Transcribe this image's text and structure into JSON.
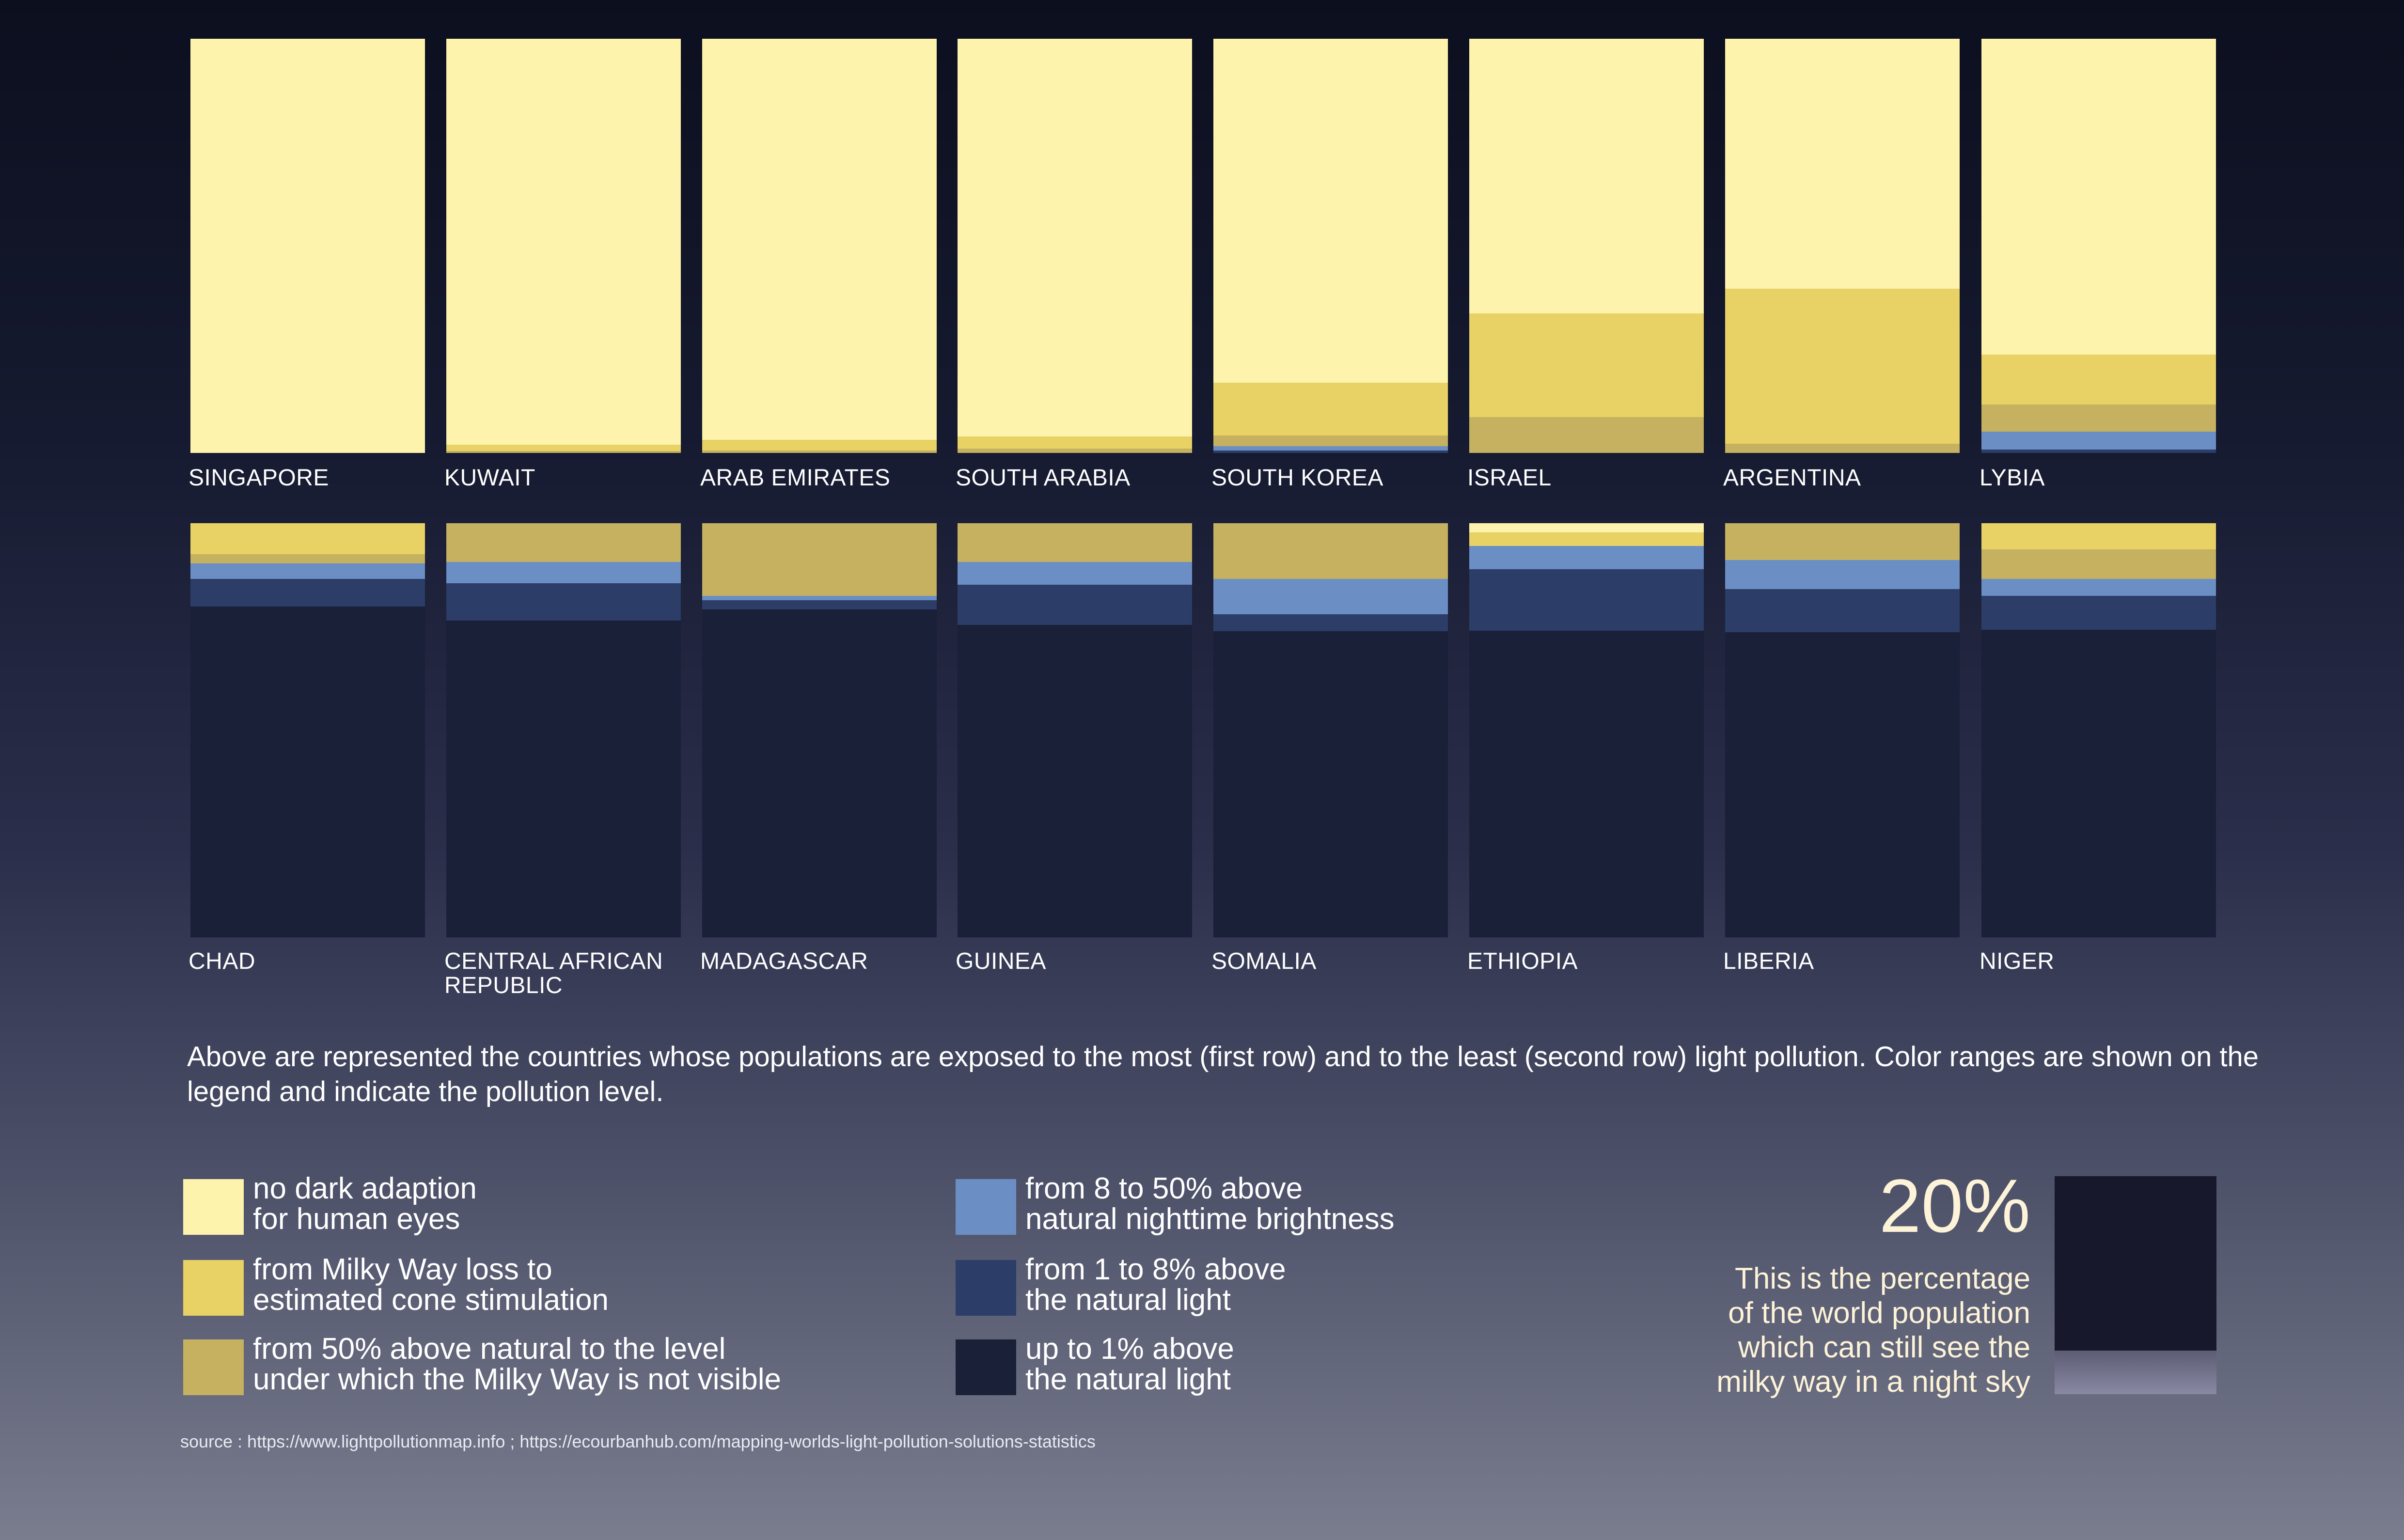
{
  "chart_data": {
    "type": "bar",
    "stacked": true,
    "percent_stacked": true,
    "levels": [
      {
        "key": "no_dark_adaption",
        "label": "no dark adaption\nfor human eyes",
        "color": "#fef3ad"
      },
      {
        "key": "milky_way_loss",
        "label": "from Milky Way loss to\nestimated cone stimulation",
        "color": "#e8d165"
      },
      {
        "key": "above_natural_50",
        "label": "from 50% above natural to the level\nunder which the Milky Way is not visible",
        "color": "#c5b160"
      },
      {
        "key": "above_8_50",
        "label": "from 8 to 50% above\nnatural nighttime brightness",
        "color": "#6b8fc4"
      },
      {
        "key": "above_1_8",
        "label": "from 1 to 8% above\nthe natural light",
        "color": "#2c3d68"
      },
      {
        "key": "up_to_1",
        "label": "up to 1% above\nthe natural light",
        "color": "#1a2038"
      }
    ],
    "rows": [
      {
        "countries": [
          {
            "name": "SINGAPORE",
            "values": [
              100,
              0,
              0,
              0,
              0,
              0
            ]
          },
          {
            "name": "KUWAIT",
            "values": [
              98,
              1.5,
              0.5,
              0,
              0,
              0
            ]
          },
          {
            "name": "ARAB EMIRATES",
            "values": [
              96.8,
              2.6,
              0.6,
              0,
              0,
              0
            ]
          },
          {
            "name": "SOUTH ARABIA",
            "values": [
              96,
              3,
              1,
              0,
              0,
              0
            ]
          },
          {
            "name": "SOUTH KOREA",
            "values": [
              83,
              12.8,
              2.6,
              1,
              0.6,
              0
            ]
          },
          {
            "name": "ISRAEL",
            "values": [
              66.3,
              25,
              8.7,
              0,
              0,
              0
            ]
          },
          {
            "name": "ARGENTINA",
            "values": [
              60.4,
              37.4,
              2.2,
              0,
              0,
              0
            ]
          },
          {
            "name": "LYBIA",
            "values": [
              76.3,
              12,
              6.5,
              4.4,
              0.8,
              0
            ]
          }
        ]
      },
      {
        "countries": [
          {
            "name": "CHAD",
            "values": [
              0,
              7.5,
              2.2,
              3.7,
              6.7,
              79.9
            ]
          },
          {
            "name": "CENTRAL AFRICAN\nREPUBLIC",
            "values": [
              0,
              0,
              9.3,
              5.2,
              9,
              76.5
            ]
          },
          {
            "name": "MADAGASCAR",
            "values": [
              0,
              0,
              17.5,
              1.1,
              2.2,
              79.2
            ]
          },
          {
            "name": "GUINEA",
            "values": [
              0,
              0,
              9.3,
              5.6,
              9.7,
              75.4
            ]
          },
          {
            "name": "SOMALIA",
            "values": [
              0,
              0,
              13.4,
              8.6,
              4.1,
              73.9
            ]
          },
          {
            "name": "ETHIOPIA",
            "values": [
              2.2,
              3.3,
              0,
              5.6,
              14.9,
              74
            ]
          },
          {
            "name": "LIBERIA",
            "values": [
              0,
              0,
              8.9,
              7,
              10.4,
              73.7
            ]
          },
          {
            "name": "NIGER",
            "values": [
              0,
              6.3,
              7.1,
              4.1,
              8.2,
              74.3
            ]
          }
        ]
      }
    ],
    "description": "Above are represented the countries whose populations are exposed to the most (first row) and to the least (second row) light pollution. Color ranges are shown on the legend and indicate the pollution level."
  },
  "stat": {
    "number": "20%",
    "text": "This is the percentage\nof the world population\nwhich can still see the\nmilky way in a night sky",
    "value": 20,
    "colors": {
      "dark": "#17182c",
      "light": "#8a89a3"
    }
  },
  "source": "source : https://www.lightpollutionmap.info ; https://ecourbanhub.com/mapping-worlds-light-pollution-solutions-statistics"
}
